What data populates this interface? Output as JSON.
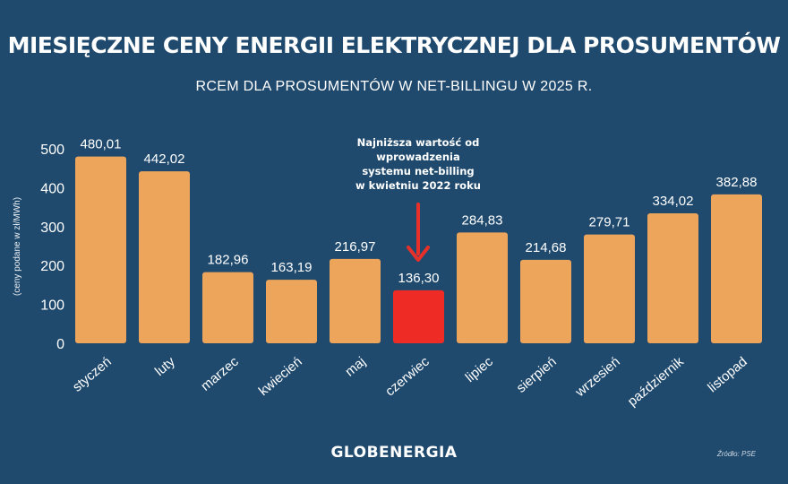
{
  "header": {
    "title": "MIESIĘCZNE CENY ENERGII ELEKTRYCZNEJ DLA PROSUMENTÓW",
    "subtitle": "RCEM DLA PROSUMENTÓW W NET-BILLINGU W 2025 R."
  },
  "footer": {
    "brand": "GLOBENERGIA",
    "source": "Źródło: PSE"
  },
  "colors": {
    "background": "#1f4a6e",
    "bar": "#eda55c",
    "highlight_bar": "#ee2b24",
    "arrow": "#e8302a"
  },
  "chart_data": {
    "type": "bar",
    "title": "MIESIĘCZNE CENY ENERGII ELEKTRYCZNEJ DLA PROSUMENTÓW",
    "subtitle": "RCEM DLA PROSUMENTÓW W NET-BILLINGU W 2025 R.",
    "xlabel": "",
    "ylabel": "(ceny podane w zł/MWh)",
    "ylim": [
      0,
      500
    ],
    "yticks": [
      0,
      100,
      200,
      300,
      400,
      500
    ],
    "grid": false,
    "categories": [
      "styczeń",
      "luty",
      "marzec",
      "kwiecień",
      "maj",
      "czerwiec",
      "lipiec",
      "sierpień",
      "wrzesień",
      "październik",
      "listopad"
    ],
    "values": [
      480.01,
      442.02,
      182.96,
      163.19,
      216.97,
      136.3,
      284.83,
      214.68,
      279.71,
      334.02,
      382.88
    ],
    "value_labels": [
      "480,01",
      "442,02",
      "182,96",
      "163,19",
      "216,97",
      "136,30",
      "284,83",
      "214,68",
      "279,71",
      "334,02",
      "382,88"
    ],
    "highlight_index": 5,
    "annotation": {
      "lines": [
        "Najniższa wartość od",
        "wprowadzenia",
        "systemu net-billing",
        "w kwietniu 2022 roku"
      ],
      "target": "czerwiec"
    }
  }
}
